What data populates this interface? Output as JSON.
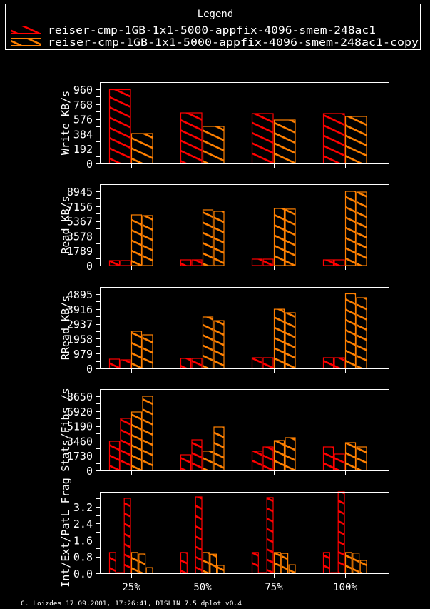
{
  "legend": {
    "title": "Legend",
    "items": [
      {
        "label": "reiser-cmp-1GB-1x1-5000-appfix-4096-smem-248ac1",
        "color": "#ff0000"
      },
      {
        "label": "reiser-cmp-1GB-1x1-5000-appfix-4096-smem-248ac1-copy",
        "color": "#ff8000"
      }
    ]
  },
  "footer": "C. Loizdes 17.09.2001, 17:26:41, DISLIN 7.5 dplot v0.4",
  "chart_data": [
    {
      "type": "bar",
      "ylabel": "Write KB/s",
      "categories": [
        "25%",
        "50%",
        "75%",
        "100%"
      ],
      "yticks": [
        "0",
        "192",
        "384",
        "576",
        "768",
        "960"
      ],
      "ytick_values": [
        0,
        192,
        384,
        576,
        768,
        960
      ],
      "ylim": [
        0,
        1052
      ],
      "series": [
        {
          "legend": 0,
          "values": [
            955,
            655,
            646,
            646
          ]
        },
        {
          "legend": 1,
          "values": [
            388,
            480,
            563,
            609
          ]
        }
      ]
    },
    {
      "type": "bar",
      "ylabel": "Read KB/s",
      "categories": [
        "25%",
        "50%",
        "75%",
        "100%"
      ],
      "yticks": [
        "0",
        "1789",
        "3578",
        "5367",
        "7156",
        "8945"
      ],
      "ytick_values": [
        0,
        1789,
        3578,
        5367,
        7156,
        8945
      ],
      "ylim": [
        0,
        9805
      ],
      "series": [
        {
          "legend": 0,
          "values": [
            600,
            690,
            775,
            690
          ]
        },
        {
          "legend": 0,
          "values": [
            600,
            690,
            775,
            690
          ]
        },
        {
          "legend": 1,
          "values": [
            6107,
            6710,
            6880,
            8945
          ]
        },
        {
          "legend": 1,
          "values": [
            6020,
            6540,
            6800,
            8860
          ]
        }
      ]
    },
    {
      "type": "bar",
      "ylabel": "RRead KB/s",
      "categories": [
        "25%",
        "50%",
        "75%",
        "100%"
      ],
      "yticks": [
        "0",
        "979",
        "1958",
        "2937",
        "3916",
        "4895"
      ],
      "ytick_values": [
        0,
        979,
        1958,
        2937,
        3916,
        4895
      ],
      "ylim": [
        0,
        5366
      ],
      "series": [
        {
          "legend": 0,
          "values": [
            610,
            660,
            705,
            705
          ]
        },
        {
          "legend": 0,
          "values": [
            565,
            660,
            705,
            705
          ]
        },
        {
          "legend": 1,
          "values": [
            2450,
            3390,
            3900,
            4920
          ]
        },
        {
          "legend": 1,
          "values": [
            2210,
            3150,
            3670,
            4660
          ]
        }
      ]
    },
    {
      "type": "bar",
      "ylabel": "Stats/Fibs /s",
      "categories": [
        "25%",
        "50%",
        "75%",
        "100%"
      ],
      "yticks": [
        "0",
        "1730",
        "3460",
        "5190",
        "6920",
        "8650"
      ],
      "ytick_values": [
        0,
        1730,
        3460,
        5190,
        6920,
        8650
      ],
      "ylim": [
        0,
        9482
      ],
      "series": [
        {
          "legend": 0,
          "values": [
            3410,
            1830,
            2250,
            2745
          ]
        },
        {
          "legend": 0,
          "values": [
            6070,
            3580,
            2745,
            1910
          ]
        },
        {
          "legend": 1,
          "values": [
            6820,
            2250,
            3490,
            3240
          ]
        },
        {
          "legend": 1,
          "values": [
            8650,
            5070,
            3830,
            2745
          ]
        }
      ]
    },
    {
      "type": "bar",
      "ylabel": "Int/Ext/PatL Frag",
      "categories": [
        "25%",
        "50%",
        "75%",
        "100%"
      ],
      "yticks": [
        "0.0",
        "0.8",
        "1.6",
        "2.4",
        "3.2"
      ],
      "ytick_values": [
        0,
        0.8,
        1.6,
        2.4,
        3.2
      ],
      "ylim": [
        0,
        3.92
      ],
      "show_xlabels": true,
      "series": [
        {
          "legend": 0,
          "values": [
            1.0,
            1.0,
            1.0,
            1.0
          ]
        },
        {
          "legend": 0,
          "values": [
            0.03,
            0.0,
            0.03,
            0.03
          ]
        },
        {
          "legend": 0,
          "values": [
            3.61,
            3.68,
            3.65,
            3.92
          ]
        },
        {
          "legend": 1,
          "values": [
            1.0,
            1.0,
            1.0,
            1.0
          ]
        },
        {
          "legend": 1,
          "values": [
            0.93,
            0.92,
            0.96,
            0.97
          ]
        },
        {
          "legend": 1,
          "values": [
            0.27,
            0.38,
            0.41,
            0.62
          ]
        }
      ]
    }
  ]
}
